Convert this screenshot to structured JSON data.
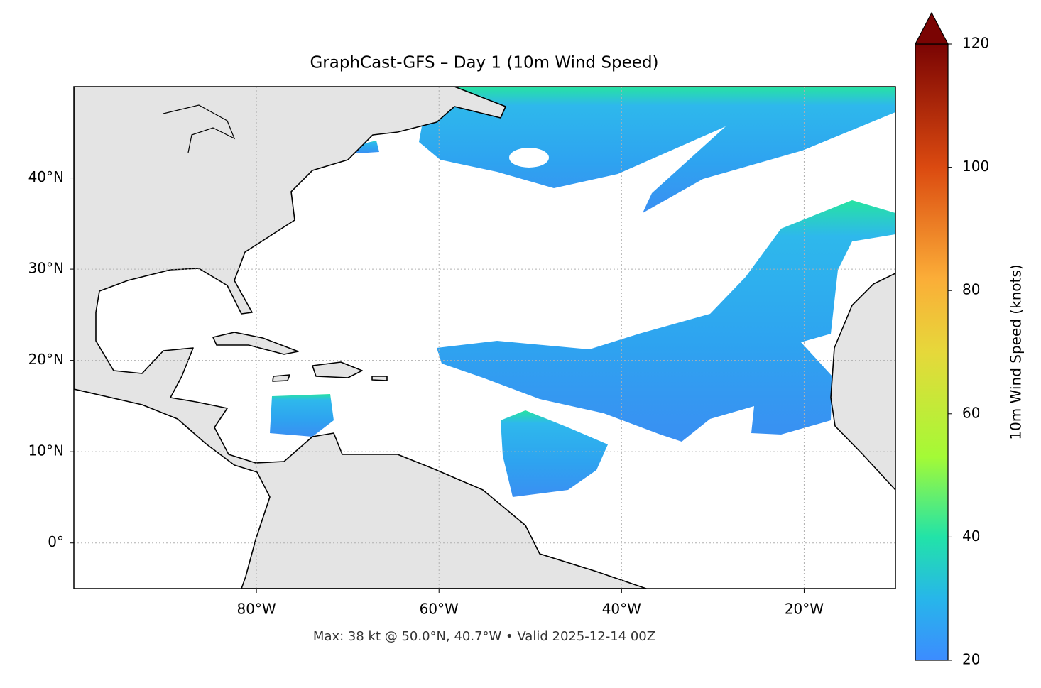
{
  "chart_data": {
    "type": "map",
    "title": "GraphCast-GFS – Day 1 (10m Wind Speed)",
    "footer": "Max: 38 kt @ 50.0°N, 40.7°W • Valid 2025-12-14 00Z",
    "xlim": [
      -100,
      -10
    ],
    "ylim": [
      -5,
      50
    ],
    "xticks": [
      {
        "value": -80,
        "label": "80°W"
      },
      {
        "value": -60,
        "label": "60°W"
      },
      {
        "value": -40,
        "label": "40°W"
      },
      {
        "value": -20,
        "label": "20°W"
      }
    ],
    "yticks": [
      {
        "value": 0,
        "label": "0°"
      },
      {
        "value": 10,
        "label": "10°N"
      },
      {
        "value": 20,
        "label": "20°N"
      },
      {
        "value": 30,
        "label": "30°N"
      },
      {
        "value": 40,
        "label": "40°N"
      }
    ],
    "grid": true,
    "colorbar": {
      "label": "10m Wind Speed (knots)",
      "lim": [
        20,
        120
      ],
      "ticks": [
        20,
        40,
        60,
        80,
        100,
        120
      ]
    }
  }
}
